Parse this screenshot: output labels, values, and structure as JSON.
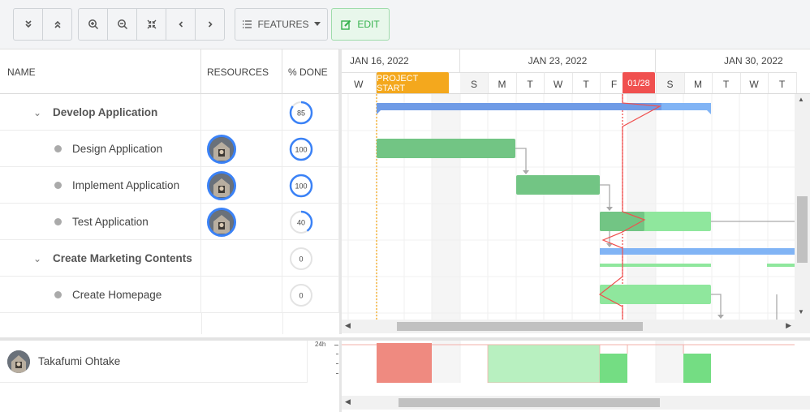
{
  "toolbar": {
    "buttons": [
      {
        "name": "expand-all-button",
        "icon": "double-chevron-down-icon",
        "glyph": "⌄"
      },
      {
        "name": "collapse-all-button",
        "icon": "double-chevron-up-icon",
        "glyph": "⌃"
      },
      {
        "name": "zoom-in-button",
        "icon": "zoom-in-icon"
      },
      {
        "name": "zoom-out-button",
        "icon": "zoom-out-icon"
      },
      {
        "name": "zoom-to-fit-button",
        "icon": "compress-icon"
      },
      {
        "name": "previous-button",
        "icon": "chevron-left-icon",
        "glyph": "‹"
      },
      {
        "name": "next-button",
        "icon": "chevron-right-icon",
        "glyph": "›"
      }
    ],
    "features_label": "FEATURES",
    "edit_label": "EDIT",
    "edit_color": "#36b24e"
  },
  "grid": {
    "columns": {
      "name": "NAME",
      "resources": "RESOURCES",
      "percent_done": "% DONE"
    },
    "rows": [
      {
        "type": "parent",
        "name": "Develop Application",
        "percent": 85,
        "percent_label": "85",
        "has_resource": false
      },
      {
        "type": "leaf",
        "name": "Design Application",
        "percent": 100,
        "percent_label": "100",
        "has_resource": true
      },
      {
        "type": "leaf",
        "name": "Implement Application",
        "percent": 100,
        "percent_label": "100",
        "has_resource": true
      },
      {
        "type": "leaf",
        "name": "Test Application",
        "percent": 40,
        "percent_label": "40",
        "has_resource": true
      },
      {
        "type": "parent",
        "name": "Create Marketing Contents",
        "percent": 0,
        "percent_label": "0",
        "has_resource": false
      },
      {
        "type": "leaf",
        "name": "Create Homepage",
        "percent": 0,
        "percent_label": "0",
        "has_resource": false
      }
    ]
  },
  "timeline": {
    "weeks": [
      "JAN 16, 2022",
      "JAN 23, 2022",
      "JAN 30, 2022"
    ],
    "days": [
      "W",
      "",
      "",
      "",
      "S",
      "M",
      "T",
      "W",
      "T",
      "F",
      "",
      "S",
      "M",
      "T",
      "W",
      "T"
    ],
    "project_start_label": "PROJECT START",
    "today_label": "01/28",
    "colors": {
      "project_start": "#f4a81d",
      "today": "#f0504f",
      "parent_bar": "#6f9be6",
      "task_done": "#72c584",
      "task_todo": "#8fe79d",
      "dependency": "#aaaaaa"
    }
  },
  "resources": {
    "name": "Takafumi Ohtake",
    "axis_label": "24h",
    "colors": {
      "overload": "#ef8a80",
      "allocated_light": "#b8f0c0",
      "allocated": "#74dd83"
    }
  }
}
